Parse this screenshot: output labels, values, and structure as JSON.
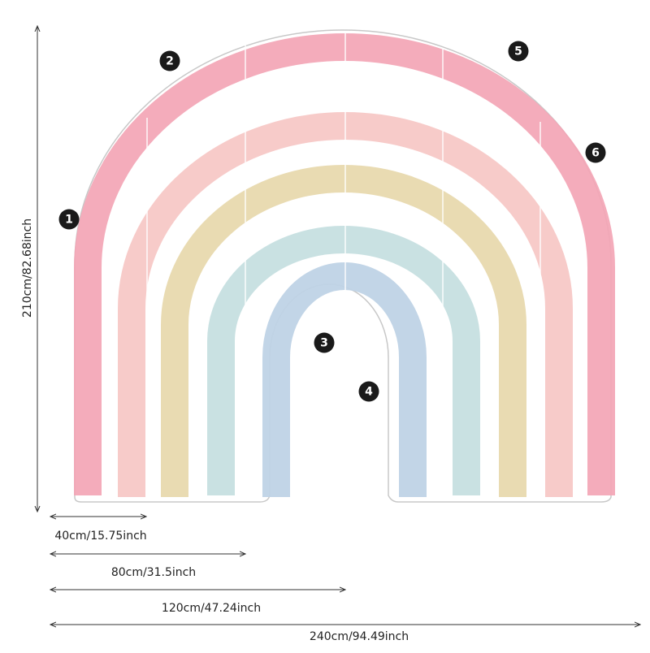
{
  "dimensions": {
    "height_label": "210cm/82.68inch",
    "width_labels": [
      "40cm/15.75inch",
      "80cm/31.5inch",
      "120cm/47.24inch",
      "240cm/94.49inch"
    ]
  },
  "panel_numbers": [
    "1",
    "2",
    "3",
    "4",
    "5",
    "6"
  ],
  "colors": {
    "arc1": "#f3a5b5",
    "arc2": "#f6c7c4",
    "arc3": "#e8d9ae",
    "arc4": "#c6dfe0",
    "arc5": "#bfd3e6",
    "outline": "#c8c8c8",
    "dimension_line": "#333333",
    "badge": "#1a1a1a"
  }
}
